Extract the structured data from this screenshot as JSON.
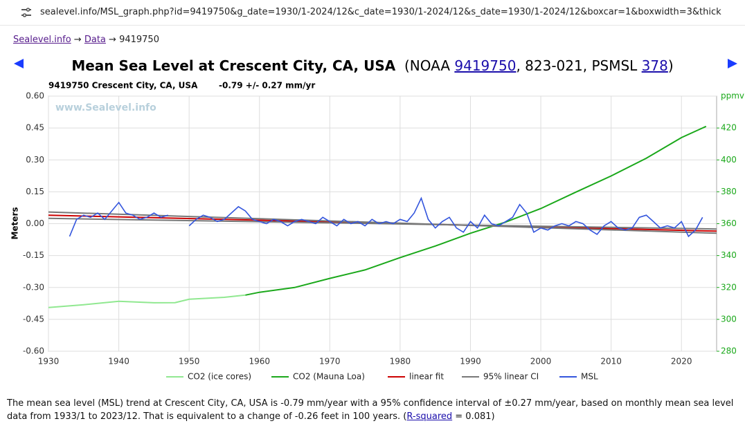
{
  "browser": {
    "url": "sealevel.info/MSL_graph.php?id=9419750&g_date=1930/1-2024/12&c_date=1930/1-2024/12&s_date=1930/1-2024/12&boxcar=1&boxwidth=3&thick"
  },
  "breadcrumb": {
    "items": [
      "Sealevel.info",
      "Data",
      "9419750"
    ],
    "separator": "→"
  },
  "header": {
    "title": "Mean Sea Level at Crescent City, CA, USA",
    "parts": [
      "(NOAA ",
      "9419750",
      ", 823-021, PSMSL ",
      "378",
      ")"
    ]
  },
  "chart_data": {
    "type": "line",
    "station_label": "9419750 Crescent City, CA, USA",
    "trend_label": "-0.79 +/- 0.27 mm/yr",
    "watermark": "www.Sealevel.info",
    "ylabel": "Meters",
    "y2label": "ppmv",
    "xlim": [
      1930,
      2025
    ],
    "xticks": [
      1930,
      1940,
      1950,
      1960,
      1970,
      1980,
      1990,
      2000,
      2010,
      2020
    ],
    "ylim": [
      -0.6,
      0.6
    ],
    "yticks": [
      {
        "value": 0.6,
        "label": "0.60"
      },
      {
        "value": 0.45,
        "label": "0.45"
      },
      {
        "value": 0.3,
        "label": "0.30"
      },
      {
        "value": 0.15,
        "label": "0.15"
      },
      {
        "value": 0,
        "label": "0.00"
      },
      {
        "value": -0.15,
        "label": "-0.15"
      },
      {
        "value": -0.3,
        "label": "-0.30"
      },
      {
        "value": -0.45,
        "label": "-0.45"
      },
      {
        "value": -0.6,
        "label": "-0.60"
      }
    ],
    "y2lim": [
      280,
      440
    ],
    "y2ticks": [
      280,
      300,
      320,
      340,
      360,
      380,
      400,
      420
    ],
    "grid": true,
    "series": [
      {
        "name": "CO2 (ice cores)",
        "color": "#90e890",
        "axis": "y2",
        "x": [
          1930,
          1935,
          1940,
          1945,
          1948,
          1950,
          1955,
          1958
        ],
        "values": [
          307.4,
          309.2,
          311.3,
          310.4,
          310.5,
          312.6,
          313.8,
          315.2
        ]
      },
      {
        "name": "CO2 (Mauna Loa)",
        "color": "#1aa81a",
        "axis": "y2",
        "x": [
          1958,
          1960,
          1965,
          1970,
          1975,
          1980,
          1985,
          1990,
          1995,
          2000,
          2005,
          2010,
          2015,
          2020,
          2023.5
        ],
        "values": [
          315.2,
          317,
          320,
          325.7,
          331,
          338.7,
          346,
          354,
          361,
          369.5,
          379.8,
          389.9,
          401,
          414,
          421
        ]
      },
      {
        "name": "linear fit",
        "color": "#cc0000",
        "x": [
          1930,
          2025
        ],
        "values": [
          0.04,
          -0.035
        ]
      },
      {
        "name": "95% linear CI",
        "color": "#777777",
        "x": [
          1930,
          2025
        ],
        "values": [
          0.055,
          -0.045
        ],
        "lower": [
          0.025,
          -0.025
        ]
      },
      {
        "name": "MSL",
        "color": "#3355dd",
        "x": [
          1933,
          1934,
          1935,
          1936,
          1937,
          1938,
          1939,
          1940,
          1941,
          1942,
          1943,
          1944,
          1945,
          1946,
          1947,
          1948,
          1949,
          1950,
          1951,
          1952,
          1953,
          1954,
          1955,
          1956,
          1957,
          1958,
          1959,
          1960,
          1961,
          1962,
          1963,
          1964,
          1965,
          1966,
          1967,
          1968,
          1969,
          1970,
          1971,
          1972,
          1973,
          1974,
          1975,
          1976,
          1977,
          1978,
          1979,
          1980,
          1981,
          1982,
          1983,
          1984,
          1985,
          1986,
          1987,
          1988,
          1989,
          1990,
          1991,
          1992,
          1993,
          1994,
          1995,
          1996,
          1997,
          1998,
          1999,
          2000,
          2001,
          2002,
          2003,
          2004,
          2005,
          2006,
          2007,
          2008,
          2009,
          2010,
          2011,
          2012,
          2013,
          2014,
          2015,
          2016,
          2017,
          2018,
          2019,
          2020,
          2021,
          2022,
          2023
        ],
        "values": [
          -0.06,
          0.02,
          0.04,
          0.03,
          0.05,
          0.02,
          0.06,
          0.1,
          0.05,
          0.04,
          0.02,
          0.03,
          0.05,
          0.03,
          0.04,
          null,
          null,
          -0.01,
          0.02,
          0.04,
          0.03,
          0.01,
          0.02,
          0.05,
          0.08,
          0.06,
          0.02,
          0.01,
          0,
          0.02,
          0.01,
          -0.01,
          0.01,
          0.02,
          0.01,
          0,
          0.03,
          0.01,
          -0.01,
          0.02,
          0,
          0.01,
          -0.01,
          0.02,
          0,
          0.01,
          0,
          0.02,
          0.01,
          0.05,
          0.12,
          0.02,
          -0.02,
          0.01,
          0.03,
          -0.02,
          -0.04,
          0.01,
          -0.02,
          0.04,
          0,
          -0.01,
          0.01,
          0.03,
          0.09,
          0.05,
          -0.04,
          -0.02,
          -0.03,
          -0.01,
          0,
          -0.01,
          0.01,
          0,
          -0.03,
          -0.05,
          -0.01,
          0.01,
          -0.02,
          -0.03,
          -0.02,
          0.03,
          0.04,
          0.01,
          -0.02,
          -0.01,
          -0.02,
          0.01,
          -0.06,
          -0.03,
          0.03
        ]
      }
    ]
  },
  "description": {
    "parts": [
      "The mean sea level (MSL) trend at Crescent City, CA, USA is -0.79 mm/year with a 95% confidence interval of ±0.27 mm/year, based on monthly mean sea level data from 1933/1 to 2023/12. That is equivalent to a change of -0.26 feet in 100 years. (",
      "R-squared",
      " = 0.081)"
    ]
  }
}
